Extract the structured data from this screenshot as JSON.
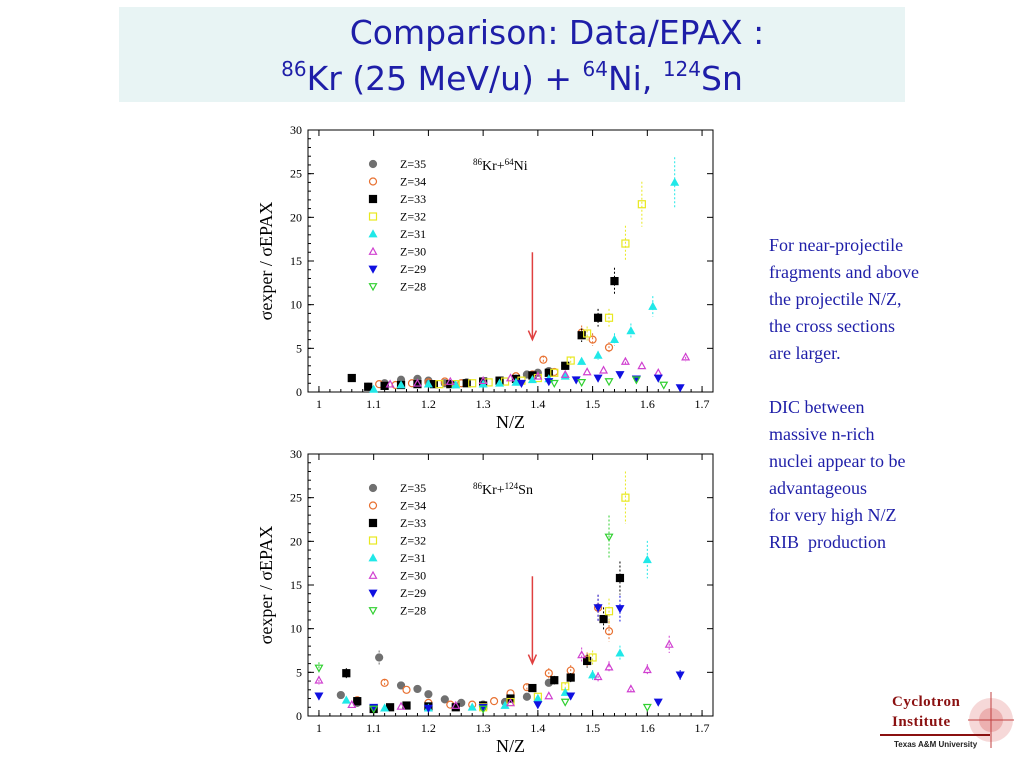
{
  "title": {
    "line1": "Comparison: Data/EPAX :",
    "line2": {
      "parts": [
        {
          "sup": "86",
          "text": "Kr (25 MeV/u) + "
        },
        {
          "sup": "64",
          "text": "Ni, "
        },
        {
          "sup": "124",
          "text": "Sn"
        }
      ]
    }
  },
  "notes": {
    "paragraph1": [
      "For near-projectile",
      "fragments and above",
      "the projectile N/Z,",
      "the cross sections",
      "are larger."
    ],
    "paragraph2": [
      "DIC between",
      "massive n-rich",
      "nuclei appear to be",
      "advantageous",
      "for very high N/Z",
      "RIB  production"
    ]
  },
  "logo": {
    "line1": "Cyclotron",
    "line2": "Institute",
    "sub": "Texas A&M University"
  },
  "chart_data": [
    {
      "type": "scatter",
      "title": "86Kr+64Ni",
      "title_parts": {
        "sup1": "86",
        "t1": "Kr+",
        "sup2": "64",
        "t2": "Ni"
      },
      "xlabel": "N/Z",
      "ylabel": "σexper / σEPAX",
      "xlim": [
        0.98,
        1.72
      ],
      "ylim": [
        0,
        30
      ],
      "xticks": [
        1,
        1.1,
        1.2,
        1.3,
        1.4,
        1.5,
        1.6,
        1.7
      ],
      "xtick_labels": [
        "1",
        "1.1",
        "1.2",
        "1.3",
        "1.4",
        "1.5",
        "1.6",
        "1.7"
      ],
      "yticks": [
        0,
        5,
        10,
        15,
        20,
        25,
        30
      ],
      "legend_position": "top-left",
      "arrow": {
        "x": 1.39,
        "y_from": 16,
        "y_to": 6
      },
      "series": [
        {
          "name": "Z=35",
          "marker": "circle-filled",
          "color": "#707070",
          "points": [
            [
              1.09,
              0.6
            ],
            [
              1.12,
              1.0
            ],
            [
              1.15,
              1.4
            ],
            [
              1.18,
              1.5
            ],
            [
              1.2,
              1.3
            ],
            [
              1.23,
              1.0
            ],
            [
              1.27,
              1.1
            ],
            [
              1.3,
              1.2
            ],
            [
              1.33,
              1.3
            ],
            [
              1.36,
              1.5
            ],
            [
              1.38,
              2.0
            ],
            [
              1.4,
              2.2
            ],
            [
              1.42,
              2.4
            ]
          ]
        },
        {
          "name": "Z=34",
          "marker": "circle-open",
          "color": "#e87030",
          "points": [
            [
              1.11,
              0.9
            ],
            [
              1.14,
              0.8
            ],
            [
              1.17,
              1.0
            ],
            [
              1.2,
              1.1
            ],
            [
              1.23,
              1.2
            ],
            [
              1.26,
              1.0
            ],
            [
              1.3,
              1.0
            ],
            [
              1.33,
              1.3
            ],
            [
              1.36,
              1.8
            ],
            [
              1.39,
              2.0
            ],
            [
              1.41,
              3.7
            ],
            [
              1.43,
              2.3
            ],
            [
              1.45,
              3.0
            ],
            [
              1.48,
              6.8
            ],
            [
              1.5,
              6.0
            ],
            [
              1.53,
              5.1
            ]
          ]
        },
        {
          "name": "Z=33",
          "marker": "square-filled",
          "color": "#000000",
          "points": [
            [
              1.06,
              1.6
            ],
            [
              1.09,
              0.6
            ],
            [
              1.12,
              0.7
            ],
            [
              1.15,
              0.8
            ],
            [
              1.18,
              0.9
            ],
            [
              1.21,
              0.9
            ],
            [
              1.24,
              0.9
            ],
            [
              1.27,
              1.0
            ],
            [
              1.3,
              1.2
            ],
            [
              1.33,
              1.3
            ],
            [
              1.36,
              1.5
            ],
            [
              1.39,
              1.9
            ],
            [
              1.42,
              2.2
            ],
            [
              1.45,
              3.0
            ],
            [
              1.48,
              6.5
            ],
            [
              1.51,
              8.5
            ],
            [
              1.54,
              12.7
            ]
          ]
        },
        {
          "name": "Z=32",
          "marker": "square-open",
          "color": "#e8e820",
          "points": [
            [
              1.22,
              0.9
            ],
            [
              1.25,
              0.9
            ],
            [
              1.28,
              1.0
            ],
            [
              1.31,
              1.1
            ],
            [
              1.34,
              1.2
            ],
            [
              1.37,
              1.3
            ],
            [
              1.4,
              1.6
            ],
            [
              1.43,
              2.2
            ],
            [
              1.46,
              3.6
            ],
            [
              1.49,
              6.7
            ],
            [
              1.53,
              8.5
            ],
            [
              1.56,
              17.0
            ],
            [
              1.59,
              21.5
            ]
          ]
        },
        {
          "name": "Z=31",
          "marker": "triangle-up-filled",
          "color": "#20e8e8",
          "points": [
            [
              1.1,
              0.3
            ],
            [
              1.15,
              0.8
            ],
            [
              1.2,
              0.9
            ],
            [
              1.25,
              0.8
            ],
            [
              1.3,
              0.9
            ],
            [
              1.33,
              1.0
            ],
            [
              1.36,
              1.1
            ],
            [
              1.39,
              1.4
            ],
            [
              1.42,
              1.5
            ],
            [
              1.45,
              1.8
            ],
            [
              1.48,
              3.5
            ],
            [
              1.51,
              4.2
            ],
            [
              1.54,
              6.0
            ],
            [
              1.57,
              7.0
            ],
            [
              1.61,
              9.8
            ],
            [
              1.65,
              24.0
            ]
          ]
        },
        {
          "name": "Z=30",
          "marker": "triangle-up-open",
          "color": "#d040d0",
          "points": [
            [
              1.13,
              0.9
            ],
            [
              1.18,
              1.0
            ],
            [
              1.24,
              1.2
            ],
            [
              1.3,
              1.3
            ],
            [
              1.35,
              1.6
            ],
            [
              1.4,
              1.8
            ],
            [
              1.45,
              2.0
            ],
            [
              1.49,
              2.3
            ],
            [
              1.52,
              2.5
            ],
            [
              1.56,
              3.5
            ],
            [
              1.59,
              3.0
            ],
            [
              1.62,
              2.2
            ],
            [
              1.67,
              4.0
            ]
          ]
        },
        {
          "name": "Z=29",
          "marker": "triangle-down-filled",
          "color": "#1010e0",
          "points": [
            [
              1.37,
              1.0
            ],
            [
              1.42,
              1.2
            ],
            [
              1.47,
              1.4
            ],
            [
              1.51,
              1.6
            ],
            [
              1.55,
              2.0
            ],
            [
              1.58,
              1.5
            ],
            [
              1.62,
              1.6
            ],
            [
              1.66,
              0.5
            ]
          ]
        },
        {
          "name": "Z=28",
          "marker": "triangle-down-open",
          "color": "#30d030",
          "points": [
            [
              1.43,
              1.0
            ],
            [
              1.48,
              1.1
            ],
            [
              1.53,
              1.2
            ],
            [
              1.58,
              1.4
            ],
            [
              1.63,
              0.8
            ]
          ]
        }
      ]
    },
    {
      "type": "scatter",
      "title": "86Kr+124Sn",
      "title_parts": {
        "sup1": "86",
        "t1": "Kr+",
        "sup2": "124",
        "t2": "Sn"
      },
      "xlabel": "N/Z",
      "ylabel": "σexper / σEPAX",
      "xlim": [
        0.98,
        1.72
      ],
      "ylim": [
        0,
        30
      ],
      "xticks": [
        1,
        1.1,
        1.2,
        1.3,
        1.4,
        1.5,
        1.6,
        1.7
      ],
      "xtick_labels": [
        "1",
        "1.1",
        "1.2",
        "1.3",
        "1.4",
        "1.5",
        "1.6",
        "1.7"
      ],
      "yticks": [
        0,
        5,
        10,
        15,
        20,
        25,
        30
      ],
      "legend_position": "top-left",
      "arrow": {
        "x": 1.39,
        "y_from": 16,
        "y_to": 6
      },
      "series": [
        {
          "name": "Z=35",
          "marker": "circle-filled",
          "color": "#707070",
          "points": [
            [
              1.04,
              2.4
            ],
            [
              1.07,
              1.5
            ],
            [
              1.11,
              6.7
            ],
            [
              1.15,
              3.5
            ],
            [
              1.18,
              3.1
            ],
            [
              1.2,
              2.5
            ],
            [
              1.23,
              1.9
            ],
            [
              1.26,
              1.5
            ],
            [
              1.3,
              1.3
            ],
            [
              1.34,
              1.6
            ],
            [
              1.38,
              2.2
            ],
            [
              1.42,
              3.8
            ]
          ]
        },
        {
          "name": "Z=34",
          "marker": "circle-open",
          "color": "#e87030",
          "points": [
            [
              1.07,
              1.8
            ],
            [
              1.12,
              3.8
            ],
            [
              1.16,
              3.0
            ],
            [
              1.2,
              1.5
            ],
            [
              1.24,
              1.3
            ],
            [
              1.28,
              1.3
            ],
            [
              1.32,
              1.7
            ],
            [
              1.35,
              2.6
            ],
            [
              1.38,
              3.3
            ],
            [
              1.42,
              4.9
            ],
            [
              1.46,
              5.2
            ],
            [
              1.49,
              6.5
            ],
            [
              1.51,
              12.4
            ],
            [
              1.53,
              9.7
            ]
          ]
        },
        {
          "name": "Z=33",
          "marker": "square-filled",
          "color": "#000000",
          "points": [
            [
              1.05,
              4.9
            ],
            [
              1.07,
              1.7
            ],
            [
              1.1,
              0.8
            ],
            [
              1.13,
              1.0
            ],
            [
              1.16,
              1.2
            ],
            [
              1.2,
              1.1
            ],
            [
              1.25,
              1.0
            ],
            [
              1.3,
              1.2
            ],
            [
              1.35,
              2.0
            ],
            [
              1.39,
              3.2
            ],
            [
              1.43,
              4.1
            ],
            [
              1.46,
              4.4
            ],
            [
              1.49,
              6.3
            ],
            [
              1.52,
              11.1
            ],
            [
              1.55,
              15.8
            ]
          ]
        },
        {
          "name": "Z=32",
          "marker": "square-open",
          "color": "#e8e820",
          "points": [
            [
              1.3,
              1.0
            ],
            [
              1.35,
              1.6
            ],
            [
              1.4,
              2.2
            ],
            [
              1.45,
              3.4
            ],
            [
              1.5,
              6.7
            ],
            [
              1.53,
              12.0
            ],
            [
              1.56,
              25.0
            ]
          ]
        },
        {
          "name": "Z=31",
          "marker": "triangle-up-filled",
          "color": "#20e8e8",
          "points": [
            [
              1.05,
              1.8
            ],
            [
              1.12,
              0.9
            ],
            [
              1.2,
              0.9
            ],
            [
              1.28,
              1.0
            ],
            [
              1.34,
              1.2
            ],
            [
              1.4,
              2.0
            ],
            [
              1.45,
              2.7
            ],
            [
              1.5,
              4.7
            ],
            [
              1.55,
              7.2
            ],
            [
              1.6,
              17.9
            ]
          ]
        },
        {
          "name": "Z=30",
          "marker": "triangle-up-open",
          "color": "#d040d0",
          "points": [
            [
              1.0,
              4.1
            ],
            [
              1.06,
              1.3
            ],
            [
              1.15,
              1.1
            ],
            [
              1.25,
              1.2
            ],
            [
              1.35,
              1.5
            ],
            [
              1.42,
              2.3
            ],
            [
              1.48,
              7.0
            ],
            [
              1.51,
              4.5
            ],
            [
              1.53,
              5.6
            ],
            [
              1.57,
              3.1
            ],
            [
              1.6,
              5.3
            ],
            [
              1.64,
              8.2
            ]
          ]
        },
        {
          "name": "Z=29",
          "marker": "triangle-down-filled",
          "color": "#1010e0",
          "points": [
            [
              1.0,
              2.3
            ],
            [
              1.1,
              1.0
            ],
            [
              1.2,
              0.9
            ],
            [
              1.3,
              1.0
            ],
            [
              1.4,
              1.3
            ],
            [
              1.46,
              2.3
            ],
            [
              1.51,
              12.4
            ],
            [
              1.55,
              12.3
            ],
            [
              1.62,
              1.6
            ],
            [
              1.66,
              4.7
            ]
          ]
        },
        {
          "name": "Z=28",
          "marker": "triangle-down-open",
          "color": "#30d030",
          "points": [
            [
              1.0,
              5.5
            ],
            [
              1.1,
              0.8
            ],
            [
              1.3,
              0.8
            ],
            [
              1.45,
              1.6
            ],
            [
              1.53,
              20.5
            ],
            [
              1.6,
              1.0
            ]
          ]
        }
      ]
    }
  ]
}
